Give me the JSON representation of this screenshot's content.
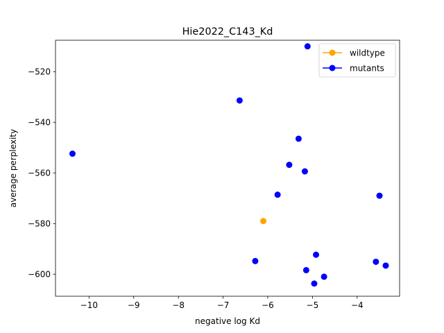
{
  "chart_data": {
    "type": "scatter",
    "title": "Hie2022_C143_Kd",
    "xlabel": "negative log Kd",
    "ylabel": "average perplexity",
    "xlim": [
      -10.75,
      -3.05
    ],
    "ylim": [
      -608.7,
      -507.6
    ],
    "xticks": [
      -10,
      -9,
      -8,
      -7,
      -6,
      -5,
      -4
    ],
    "yticks": [
      -600,
      -580,
      -560,
      -540,
      -520
    ],
    "xtick_labels": [
      "−10",
      "−9",
      "−8",
      "−7",
      "−6",
      "−5",
      "−4"
    ],
    "ytick_labels": [
      "−600",
      "−580",
      "−560",
      "−540",
      "−520"
    ],
    "grid": false,
    "legend_position": "top-right",
    "series": [
      {
        "name": "wildtype",
        "color": "#ffa500",
        "points": [
          {
            "x": -6.1,
            "y": -579.0
          }
        ]
      },
      {
        "name": "mutants",
        "color": "#0000ff",
        "points": [
          {
            "x": -10.37,
            "y": -552.4
          },
          {
            "x": -6.63,
            "y": -531.4
          },
          {
            "x": -6.28,
            "y": -594.8
          },
          {
            "x": -5.78,
            "y": -568.6
          },
          {
            "x": -5.52,
            "y": -556.8
          },
          {
            "x": -5.31,
            "y": -546.5
          },
          {
            "x": -5.17,
            "y": -559.4
          },
          {
            "x": -5.14,
            "y": -598.4
          },
          {
            "x": -5.11,
            "y": -510.0
          },
          {
            "x": -4.96,
            "y": -603.7
          },
          {
            "x": -4.92,
            "y": -592.3
          },
          {
            "x": -4.74,
            "y": -601.0
          },
          {
            "x": -3.58,
            "y": -595.1
          },
          {
            "x": -3.5,
            "y": -569.0
          },
          {
            "x": -3.36,
            "y": -596.6
          }
        ]
      }
    ]
  }
}
